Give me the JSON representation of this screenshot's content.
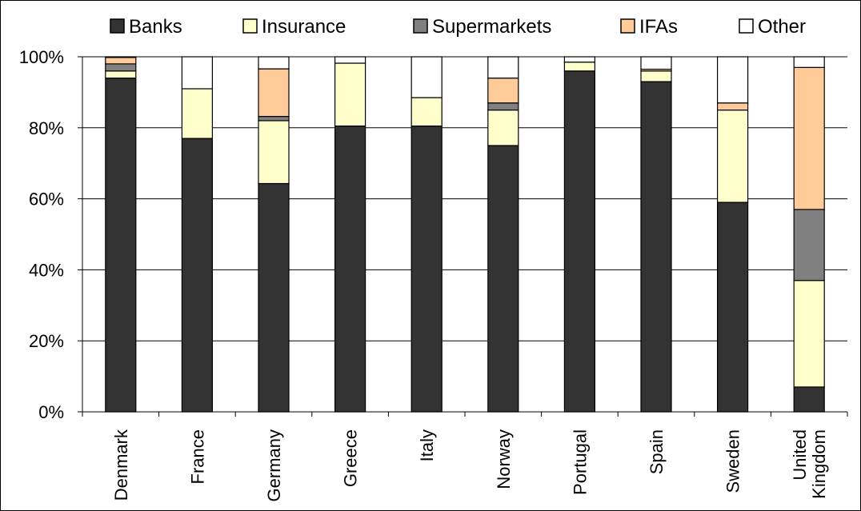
{
  "chart_data": {
    "type": "bar",
    "stacked": true,
    "percent": true,
    "categories": [
      "Denmark",
      "France",
      "Germany",
      "Greece",
      "Italy",
      "Norway",
      "Portugal",
      "Spain",
      "Sweden",
      "United Kingdom"
    ],
    "category_lines": [
      [
        "Denmark"
      ],
      [
        "France"
      ],
      [
        "Germany"
      ],
      [
        "Greece"
      ],
      [
        "Italy"
      ],
      [
        "Norway"
      ],
      [
        "Portugal"
      ],
      [
        "Spain"
      ],
      [
        "Sweden"
      ],
      [
        "United",
        "Kingdom"
      ]
    ],
    "series": [
      {
        "name": "Banks",
        "color": "#333333",
        "values": [
          94,
          77,
          64.3,
          80.5,
          80.5,
          75,
          96,
          93,
          59,
          7
        ]
      },
      {
        "name": "Insurance",
        "color": "#FFFFCC",
        "values": [
          2,
          14,
          17.7,
          17.7,
          8,
          10,
          2.5,
          3,
          26,
          30
        ]
      },
      {
        "name": "Supermarkets",
        "color": "#808080",
        "values": [
          2,
          0,
          1.2,
          0,
          0,
          2,
          0,
          0,
          0,
          20
        ]
      },
      {
        "name": "IFAs",
        "color": "#FFCC99",
        "values": [
          1.8,
          0,
          13.4,
          0,
          0,
          7,
          0,
          0.5,
          2,
          40
        ]
      },
      {
        "name": "Other",
        "color": "#FFFFFF",
        "values": [
          0.2,
          9,
          3.4,
          1.8,
          11.5,
          6,
          1.5,
          3.5,
          13,
          3
        ]
      }
    ],
    "ylim": [
      0,
      100
    ],
    "yticks": [
      "0%",
      "20%",
      "40%",
      "60%",
      "80%",
      "100%"
    ],
    "grid": true,
    "legend": "top"
  }
}
